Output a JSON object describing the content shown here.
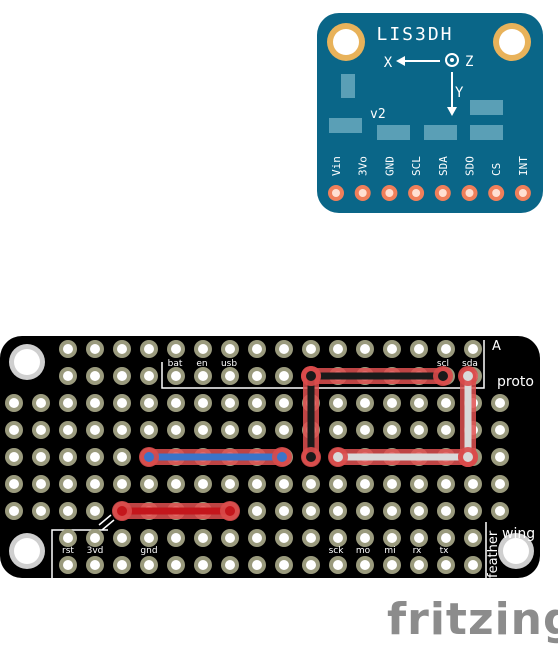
{
  "sensor": {
    "title": "LIS3DH",
    "version": "v2",
    "axis_x": "X",
    "axis_z": "Z",
    "axis_y": "Y",
    "pins": [
      "Vin",
      "3Vo",
      "GND",
      "SCL",
      "SDA",
      "SDO",
      "CS",
      "INT"
    ],
    "board_color": "#0a6688",
    "pad_color": "#f07f5a"
  },
  "protoboard": {
    "top_labels": [
      "bat",
      "en",
      "usb",
      "scl",
      "sda"
    ],
    "bottom_labels": [
      "rst",
      "3vd",
      "gnd",
      "sck",
      "mo",
      "mi",
      "rx",
      "tx"
    ],
    "side_text_a": "A",
    "side_text_proto": "proto",
    "side_text_wing": "wing",
    "side_text_feather": "feather",
    "board_color": "#000000",
    "hole_color": "#9a9a7d",
    "wires": [
      {
        "name": "blue-wire",
        "color": "#3b74c9"
      },
      {
        "name": "red-wire",
        "color": "#c4161c"
      },
      {
        "name": "black-wire-horizontal",
        "color": "#1a1a1a"
      },
      {
        "name": "black-wire-vertical",
        "color": "#1a1a1a"
      },
      {
        "name": "white-wire-horizontal",
        "color": "#d9d9d9"
      },
      {
        "name": "white-wire-vertical",
        "color": "#d9d9d9"
      }
    ]
  },
  "logo": {
    "text": "fritzing",
    "color": "#8c8c8c"
  }
}
